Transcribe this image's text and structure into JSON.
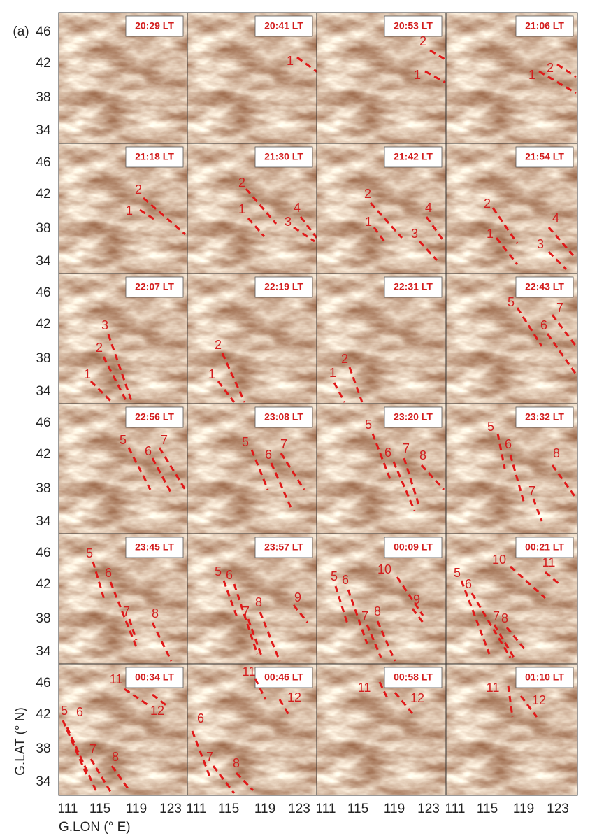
{
  "figure_label": "(a)",
  "y_axis": {
    "title": "G.LAT (° N)",
    "ticks": [
      46,
      42,
      38,
      34
    ]
  },
  "x_axis": {
    "title": "G.LON (° E)",
    "ticks": [
      111,
      115,
      119,
      123
    ]
  },
  "panels": [
    {
      "time": "20:29 LT",
      "markers": []
    },
    {
      "time": "20:41 LT",
      "markers": [
        "1"
      ]
    },
    {
      "time": "20:53 LT",
      "markers": [
        "2",
        "1"
      ]
    },
    {
      "time": "21:06 LT",
      "markers": [
        "2",
        "1"
      ]
    },
    {
      "time": "21:18 LT",
      "markers": [
        "2",
        "1"
      ]
    },
    {
      "time": "21:30 LT",
      "markers": [
        "2",
        "1",
        "4",
        "3"
      ]
    },
    {
      "time": "21:42 LT",
      "markers": [
        "2",
        "1",
        "4",
        "3"
      ]
    },
    {
      "time": "21:54 LT",
      "markers": [
        "2",
        "1",
        "4",
        "3"
      ]
    },
    {
      "time": "22:07 LT",
      "markers": [
        "3",
        "2",
        "1"
      ]
    },
    {
      "time": "22:19 LT",
      "markers": [
        "2",
        "1"
      ]
    },
    {
      "time": "22:31 LT",
      "markers": [
        "2",
        "1"
      ]
    },
    {
      "time": "22:43 LT",
      "markers": [
        "5",
        "7",
        "6"
      ]
    },
    {
      "time": "22:56 LT",
      "markers": [
        "5",
        "6",
        "7"
      ]
    },
    {
      "time": "23:08 LT",
      "markers": [
        "5",
        "6",
        "7"
      ]
    },
    {
      "time": "23:20 LT",
      "markers": [
        "5",
        "6",
        "7",
        "8"
      ]
    },
    {
      "time": "23:32 LT",
      "markers": [
        "5",
        "6",
        "8",
        "7"
      ]
    },
    {
      "time": "23:45 LT",
      "markers": [
        "5",
        "6",
        "7",
        "8"
      ]
    },
    {
      "time": "23:57 LT",
      "markers": [
        "5",
        "6",
        "7",
        "8",
        "9"
      ]
    },
    {
      "time": "00:09 LT",
      "markers": [
        "5",
        "6",
        "10",
        "7",
        "8",
        "9"
      ]
    },
    {
      "time": "00:21 LT",
      "markers": [
        "5",
        "6",
        "10",
        "11",
        "7",
        "8"
      ]
    },
    {
      "time": "00:34 LT",
      "markers": [
        "11",
        "12",
        "5",
        "6",
        "7",
        "8"
      ]
    },
    {
      "time": "00:46 LT",
      "markers": [
        "11",
        "12",
        "6",
        "7",
        "8"
      ]
    },
    {
      "time": "00:58 LT",
      "markers": [
        "11",
        "12"
      ]
    },
    {
      "time": "01:10 LT",
      "markers": [
        "11",
        "12"
      ]
    }
  ]
}
